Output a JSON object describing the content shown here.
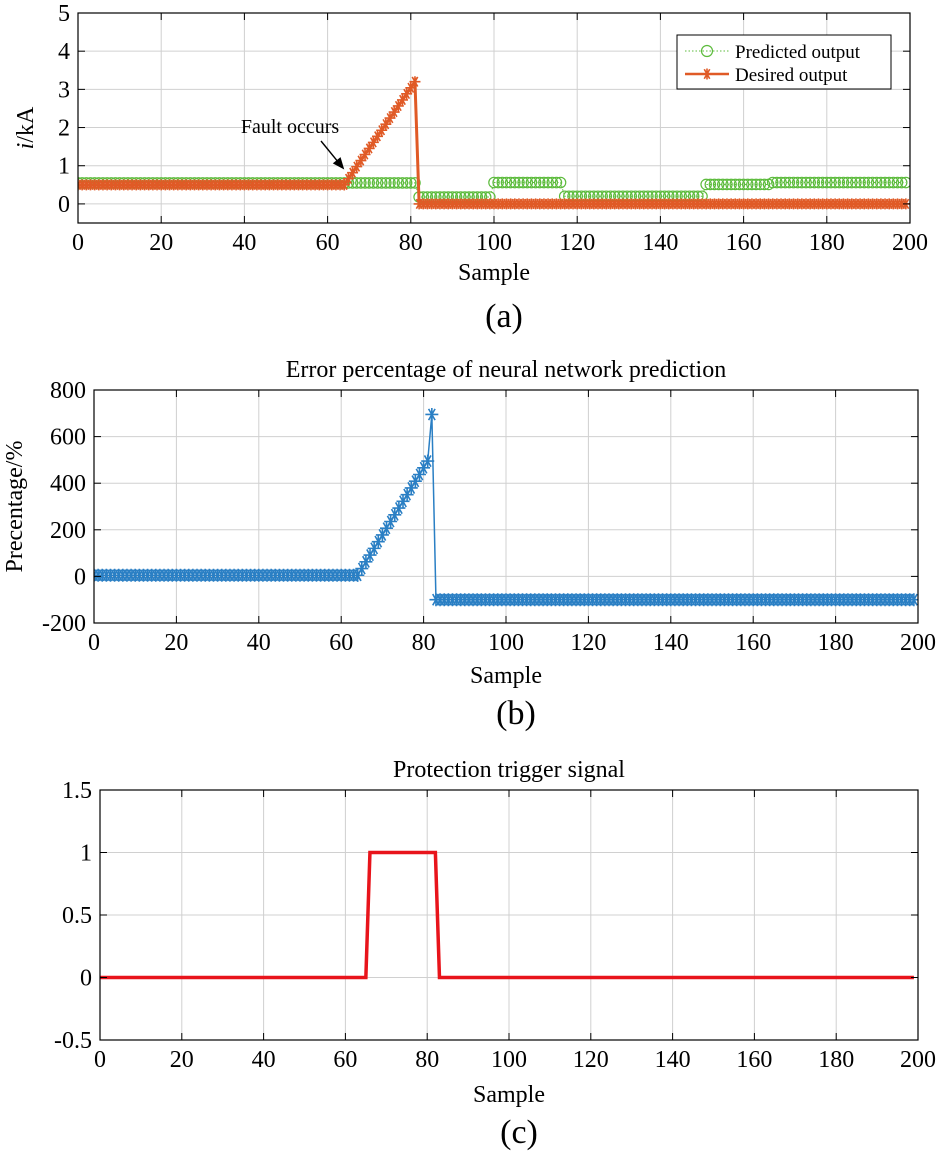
{
  "chart_data": [
    {
      "id": "a",
      "type": "line",
      "caption": "(a)",
      "title": "",
      "xlabel": "Sample",
      "ylabel_italic": "i",
      "ylabel_rest": "/kA",
      "xlim": [
        0,
        200
      ],
      "ylim": [
        -0.5,
        5
      ],
      "xticks": [
        0,
        20,
        40,
        60,
        80,
        100,
        120,
        140,
        160,
        180,
        200
      ],
      "yticks": [
        0,
        1,
        2,
        3,
        4,
        5
      ],
      "legend_position": "top-right",
      "annotation": {
        "text": "Fault occurs",
        "target_x": 64,
        "target_y": 0.9
      },
      "series": [
        {
          "name": "Predicted output",
          "color": "#5cbb3c",
          "marker": "circle",
          "line": "dotted",
          "segments": [
            {
              "x_start": 0,
              "x_end": 81,
              "y": 0.55
            },
            {
              "x_start": 82,
              "x_end": 99,
              "y": 0.18
            },
            {
              "x_start": 100,
              "x_end": 116,
              "y": 0.56
            },
            {
              "x_start": 117,
              "x_end": 150,
              "y": 0.2
            },
            {
              "x_start": 151,
              "x_end": 166,
              "y": 0.51
            },
            {
              "x_start": 167,
              "x_end": 199,
              "y": 0.56
            }
          ]
        },
        {
          "name": "Desired output",
          "color": "#e05a26",
          "marker": "star",
          "line": "solid",
          "segments": [
            {
              "x_start": 0,
              "x_end": 64,
              "y": 0.5
            },
            {
              "x_start": 64,
              "x_end": 81,
              "y_start": 0.5,
              "y_end": 3.2
            },
            {
              "x_start": 82,
              "x_end": 199,
              "y": 0.0
            }
          ]
        }
      ]
    },
    {
      "id": "b",
      "type": "line",
      "caption": "(b)",
      "title": "Error percentage of neural network prediction",
      "xlabel": "Sample",
      "ylabel": "Precentage/%",
      "xlim": [
        0,
        200
      ],
      "ylim": [
        -200,
        800
      ],
      "xticks": [
        0,
        20,
        40,
        60,
        80,
        100,
        120,
        140,
        160,
        180,
        200
      ],
      "yticks": [
        -200,
        0,
        200,
        400,
        600,
        800
      ],
      "series": [
        {
          "name": "Error percentage",
          "color": "#2a7fc4",
          "marker": "star",
          "line": "solid",
          "segments": [
            {
              "x_start": 0,
              "x_end": 64,
              "y": 5
            },
            {
              "x_start": 64,
              "x_end": 81,
              "y_start": 5,
              "y_end": 495
            },
            {
              "x_start": 82,
              "x_end": 82,
              "y": 695
            },
            {
              "x_start": 83,
              "x_end": 199,
              "y": -100
            }
          ]
        }
      ]
    },
    {
      "id": "c",
      "type": "line",
      "caption": "(c)",
      "title": "Protection trigger signal",
      "xlabel": "Sample",
      "ylabel": "",
      "xlim": [
        0,
        200
      ],
      "ylim": [
        -0.5,
        1.5
      ],
      "xticks": [
        0,
        20,
        40,
        60,
        80,
        100,
        120,
        140,
        160,
        180,
        200
      ],
      "yticks": [
        -0.5,
        0,
        0.5,
        1,
        1.5
      ],
      "series": [
        {
          "name": "Trigger signal",
          "color": "#e8141b",
          "marker": "none",
          "line": "solid",
          "points": [
            [
              0,
              0
            ],
            [
              65,
              0
            ],
            [
              66,
              1
            ],
            [
              82,
              1
            ],
            [
              83,
              0
            ],
            [
              199,
              0
            ]
          ]
        }
      ]
    }
  ]
}
